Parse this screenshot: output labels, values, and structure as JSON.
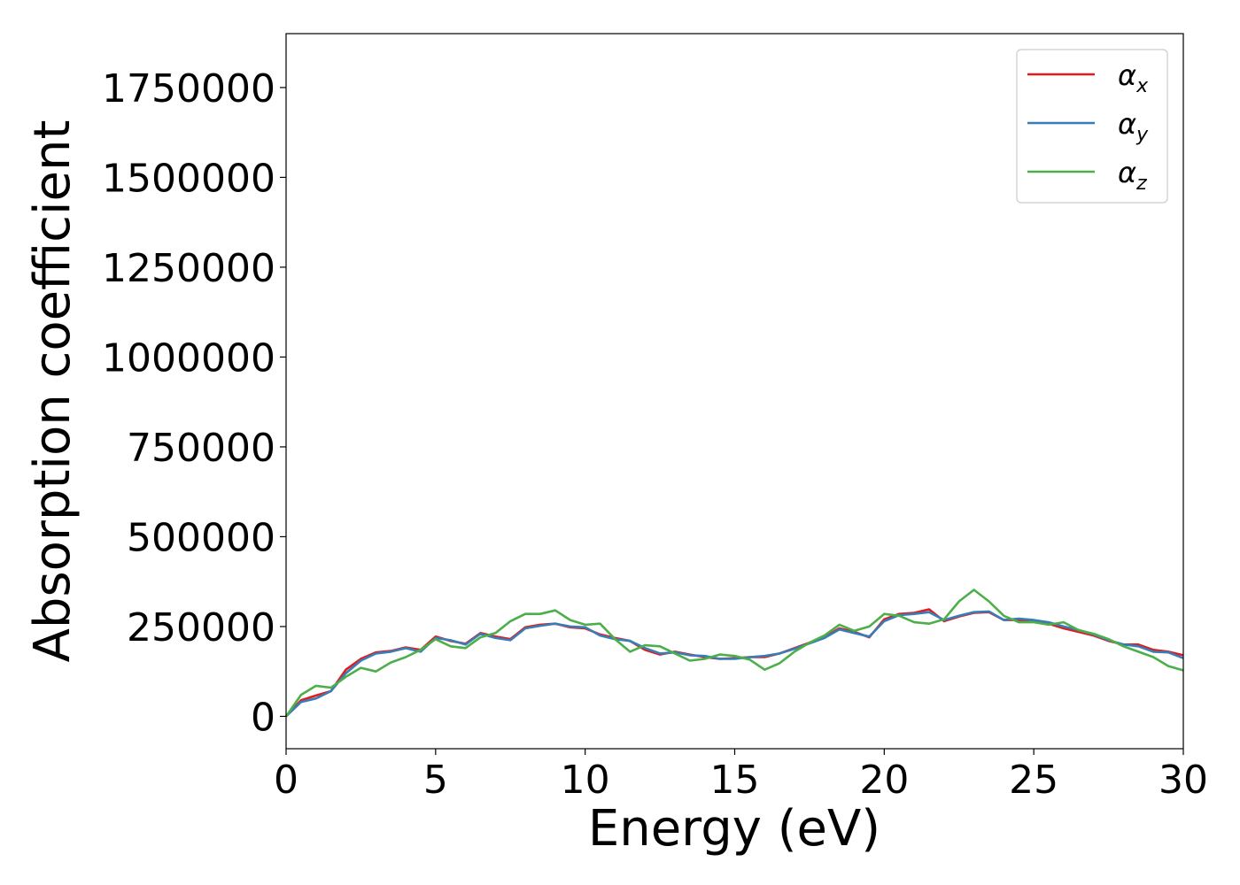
{
  "chart_data": {
    "type": "line",
    "xlabel": "Energy (eV)",
    "ylabel": "Absorption coefficient",
    "xlim": [
      0,
      30
    ],
    "ylim": [
      -90000,
      1900000
    ],
    "xticks": [
      "0",
      "5",
      "10",
      "15",
      "20",
      "25",
      "30"
    ],
    "yticks": [
      "0",
      "250000",
      "500000",
      "750000",
      "1000000",
      "1250000",
      "1500000",
      "1750000"
    ],
    "legend_position": "top-right",
    "grid": false,
    "x": [
      0,
      0.5,
      1,
      1.5,
      2,
      2.5,
      3,
      3.5,
      4,
      4.5,
      5,
      5.5,
      6,
      6.5,
      7,
      7.5,
      8,
      8.5,
      9,
      9.5,
      10,
      10.5,
      11,
      11.5,
      12,
      12.5,
      13,
      13.5,
      14,
      14.5,
      15,
      15.5,
      16,
      16.5,
      17,
      17.5,
      18,
      18.5,
      19,
      19.5,
      20,
      20.5,
      21,
      21.5,
      22,
      22.5,
      23,
      23.5,
      24,
      24.5,
      25,
      25.5,
      26,
      26.5,
      27,
      27.5,
      28,
      28.5,
      29,
      29.5,
      30
    ],
    "series": [
      {
        "name": "α",
        "subscript": "x",
        "color": "#e41a1c",
        "values": [
          0,
          45000,
          58000,
          70000,
          130000,
          160000,
          178000,
          182000,
          192000,
          185000,
          222000,
          210000,
          202000,
          232000,
          222000,
          215000,
          248000,
          255000,
          258000,
          248000,
          245000,
          228000,
          218000,
          210000,
          185000,
          172000,
          180000,
          172000,
          165000,
          160000,
          162000,
          165000,
          165000,
          175000,
          190000,
          205000,
          220000,
          245000,
          235000,
          220000,
          270000,
          285000,
          288000,
          298000,
          265000,
          278000,
          288000,
          290000,
          268000,
          268000,
          265000,
          258000,
          245000,
          235000,
          225000,
          210000,
          200000,
          200000,
          185000,
          180000,
          170000
        ]
      },
      {
        "name": "α",
        "subscript": "y",
        "color": "#377eb8",
        "values": [
          0,
          40000,
          50000,
          70000,
          120000,
          155000,
          175000,
          180000,
          190000,
          180000,
          218000,
          212000,
          200000,
          230000,
          218000,
          212000,
          245000,
          252000,
          258000,
          250000,
          248000,
          225000,
          215000,
          210000,
          190000,
          175000,
          178000,
          170000,
          168000,
          160000,
          160000,
          165000,
          168000,
          175000,
          188000,
          203000,
          218000,
          242000,
          232000,
          222000,
          265000,
          282000,
          285000,
          290000,
          268000,
          280000,
          290000,
          292000,
          268000,
          272000,
          268000,
          262000,
          250000,
          240000,
          228000,
          212000,
          200000,
          195000,
          180000,
          178000,
          162000
        ]
      },
      {
        "name": "α",
        "subscript": "z",
        "color": "#4daf4a",
        "values": [
          0,
          60000,
          85000,
          80000,
          110000,
          135000,
          125000,
          150000,
          165000,
          185000,
          215000,
          195000,
          190000,
          220000,
          232000,
          265000,
          285000,
          285000,
          295000,
          268000,
          255000,
          258000,
          215000,
          180000,
          198000,
          195000,
          175000,
          155000,
          160000,
          172000,
          168000,
          158000,
          130000,
          148000,
          180000,
          205000,
          225000,
          255000,
          238000,
          250000,
          285000,
          280000,
          262000,
          258000,
          270000,
          320000,
          352000,
          320000,
          280000,
          262000,
          262000,
          255000,
          262000,
          240000,
          230000,
          215000,
          195000,
          180000,
          165000,
          140000,
          128000
        ]
      }
    ]
  }
}
